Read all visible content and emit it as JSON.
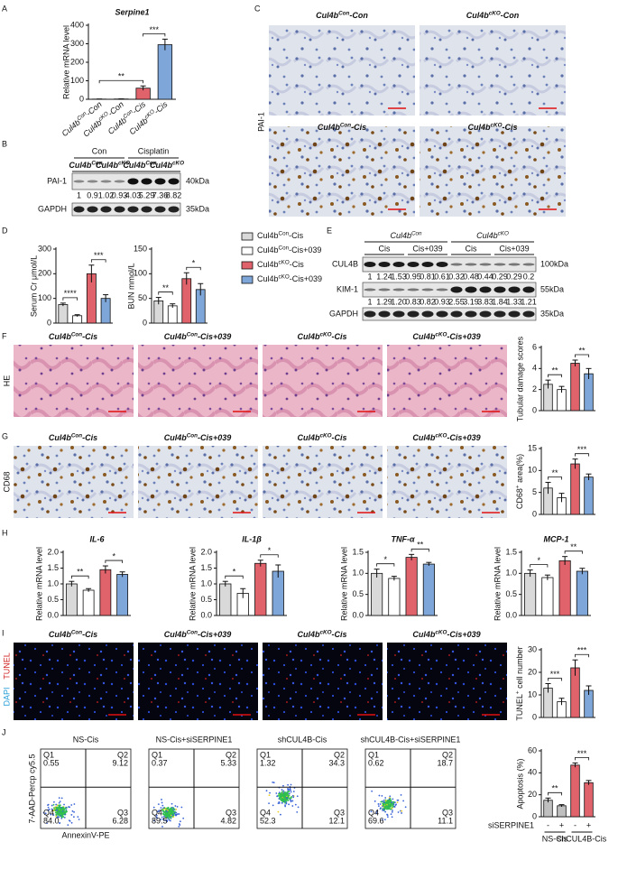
{
  "panel_letters": [
    "A",
    "B",
    "C",
    "D",
    "E",
    "F",
    "G",
    "H",
    "I",
    "J"
  ],
  "chart_data": [
    {
      "type": "bar",
      "title": "Serpine1",
      "ylabel": "Relative mRNA level",
      "categories": [
        [
          "Cul4b",
          "Con",
          "-Con"
        ],
        [
          "Cul4b",
          "cKO",
          "-Con"
        ],
        [
          "Cul4b",
          "Con",
          "-Cis"
        ],
        [
          "Cul4b",
          "cKO",
          "-Cis"
        ]
      ],
      "values": [
        1,
        1.5,
        60,
        295
      ],
      "errors": [
        0.5,
        0.8,
        12,
        30
      ],
      "colors": [
        "#d9d9d9",
        "#ffffff",
        "#e0626b",
        "#7ea6d8"
      ],
      "ylim": [
        0,
        400
      ],
      "yticks": [
        0,
        100,
        200,
        300,
        400
      ],
      "significance": [
        {
          "label": "**",
          "between": [
            0,
            2
          ]
        },
        {
          "label": "***",
          "between": [
            2,
            3
          ]
        }
      ]
    },
    {
      "type": "bar",
      "ylabel": "Serum Cr μmol/L",
      "values": [
        75,
        30,
        200,
        100
      ],
      "errors": [
        6,
        4,
        35,
        15
      ],
      "colors": [
        "#d9d9d9",
        "#ffffff",
        "#e0626b",
        "#7ea6d8"
      ],
      "ylim": [
        0,
        300
      ],
      "yticks": [
        0,
        100,
        200,
        300
      ],
      "significance": [
        {
          "label": "****",
          "between": [
            0,
            1
          ]
        },
        {
          "label": "***",
          "between": [
            2,
            3
          ]
        }
      ]
    },
    {
      "type": "bar",
      "ylabel": "BUN mmol/L",
      "values": [
        45,
        35,
        90,
        68
      ],
      "errors": [
        7,
        4,
        12,
        12
      ],
      "colors": [
        "#d9d9d9",
        "#ffffff",
        "#e0626b",
        "#7ea6d8"
      ],
      "ylim": [
        0,
        150
      ],
      "yticks": [
        0,
        50,
        100,
        150
      ],
      "significance": [
        {
          "label": "**",
          "between": [
            0,
            1
          ]
        },
        {
          "label": "*",
          "between": [
            2,
            3
          ]
        }
      ]
    },
    {
      "type": "bar",
      "ylabel": "Tubular damage scores",
      "values": [
        2.5,
        2.0,
        4.5,
        3.5
      ],
      "errors": [
        0.4,
        0.3,
        0.3,
        0.5
      ],
      "colors": [
        "#d9d9d9",
        "#ffffff",
        "#e0626b",
        "#7ea6d8"
      ],
      "ylim": [
        0,
        6
      ],
      "yticks": [
        0,
        2,
        4,
        6
      ],
      "significance": [
        {
          "label": "**",
          "between": [
            0,
            1
          ]
        },
        {
          "label": "**",
          "between": [
            2,
            3
          ]
        }
      ]
    },
    {
      "type": "bar",
      "ylabel": [
        "CD68",
        "+",
        " area(%)"
      ],
      "values": [
        6,
        3.8,
        11.5,
        8.5
      ],
      "errors": [
        1.3,
        1,
        1.1,
        0.7
      ],
      "colors": [
        "#d9d9d9",
        "#ffffff",
        "#e0626b",
        "#7ea6d8"
      ],
      "ylim": [
        0,
        15
      ],
      "yticks": [
        0,
        5,
        10,
        15
      ],
      "significance": [
        {
          "label": "**",
          "between": [
            0,
            1
          ]
        },
        {
          "label": "***",
          "between": [
            2,
            3
          ]
        }
      ]
    },
    {
      "type": "bar",
      "title": "IL-6",
      "ylabel": "Relative mRNA level",
      "values": [
        1.0,
        0.8,
        1.45,
        1.3
      ],
      "errors": [
        0.08,
        0.05,
        0.12,
        0.08
      ],
      "colors": [
        "#d9d9d9",
        "#ffffff",
        "#e0626b",
        "#7ea6d8"
      ],
      "ylim": [
        0,
        2
      ],
      "yticks": [
        {
          "value": 0,
          "label": "0.0"
        },
        {
          "value": 0.5,
          "label": "0.5"
        },
        {
          "value": 1,
          "label": "1.0"
        },
        {
          "value": 1.5,
          "label": "1.5"
        },
        {
          "value": 2,
          "label": "2.0"
        }
      ],
      "significance": [
        {
          "label": "**",
          "between": [
            0,
            1
          ]
        },
        {
          "label": "*",
          "between": [
            2,
            3
          ]
        }
      ]
    },
    {
      "type": "bar",
      "title": "IL-1β",
      "ylabel": "Relative mRNA level",
      "values": [
        1.0,
        0.7,
        1.65,
        1.4
      ],
      "errors": [
        0.08,
        0.15,
        0.1,
        0.2
      ],
      "colors": [
        "#d9d9d9",
        "#ffffff",
        "#e0626b",
        "#7ea6d8"
      ],
      "ylim": [
        0,
        2
      ],
      "yticks": [
        {
          "value": 0,
          "label": "0.0"
        },
        {
          "value": 0.5,
          "label": "0.5"
        },
        {
          "value": 1,
          "label": "1.0"
        },
        {
          "value": 1.5,
          "label": "1.5"
        },
        {
          "value": 2,
          "label": "2.0"
        }
      ],
      "significance": [
        {
          "label": "*",
          "between": [
            0,
            1
          ]
        },
        {
          "label": "*",
          "between": [
            2,
            3
          ]
        }
      ]
    },
    {
      "type": "bar",
      "title": "TNF-α",
      "ylabel": "Relative mRNA level",
      "values": [
        1.0,
        0.88,
        1.38,
        1.22
      ],
      "errors": [
        0.1,
        0.05,
        0.07,
        0.04
      ],
      "colors": [
        "#d9d9d9",
        "#ffffff",
        "#e0626b",
        "#7ea6d8"
      ],
      "ylim": [
        0,
        1.5
      ],
      "yticks": [
        {
          "value": 0,
          "label": "0.0"
        },
        {
          "value": 0.5,
          "label": "0.5"
        },
        {
          "value": 1,
          "label": "1.0"
        },
        {
          "value": 1.5,
          "label": "1.5"
        }
      ],
      "significance": [
        {
          "label": "*",
          "between": [
            0,
            1
          ]
        },
        {
          "label": "**",
          "between": [
            2,
            3
          ]
        }
      ]
    },
    {
      "type": "bar",
      "title": "MCP-1",
      "ylabel": "Relative mRNA level",
      "values": [
        1.0,
        0.9,
        1.3,
        1.05
      ],
      "errors": [
        0.08,
        0.06,
        0.1,
        0.07
      ],
      "colors": [
        "#d9d9d9",
        "#ffffff",
        "#e0626b",
        "#7ea6d8"
      ],
      "ylim": [
        0,
        1.5
      ],
      "yticks": [
        {
          "value": 0,
          "label": "0.0"
        },
        {
          "value": 0.5,
          "label": "0.5"
        },
        {
          "value": 1,
          "label": "1.0"
        },
        {
          "value": 1.5,
          "label": "1.5"
        }
      ],
      "significance": [
        {
          "label": "*",
          "between": [
            0,
            1
          ]
        },
        {
          "label": "**",
          "between": [
            2,
            3
          ]
        }
      ]
    },
    {
      "type": "bar",
      "ylabel": [
        "TUNEL",
        "+",
        " cell number"
      ],
      "values": [
        13,
        7,
        22,
        12
      ],
      "errors": [
        2,
        1.5,
        3.5,
        2
      ],
      "colors": [
        "#d9d9d9",
        "#ffffff",
        "#e0626b",
        "#7ea6d8"
      ],
      "ylim": [
        0,
        30
      ],
      "yticks": [
        0,
        10,
        20,
        30
      ],
      "significance": [
        {
          "label": "***",
          "between": [
            0,
            1
          ]
        },
        {
          "label": "***",
          "between": [
            2,
            3
          ]
        }
      ]
    },
    {
      "type": "bar",
      "ylabel": "Apoptosis (%)",
      "values": [
        15,
        10,
        47,
        31
      ],
      "errors": [
        2,
        1,
        2,
        2
      ],
      "colors": [
        "#bfbfbf",
        "#bfbfbf",
        "#e0626b",
        "#e0626b"
      ],
      "ylim": [
        0,
        60
      ],
      "yticks": [
        0,
        20,
        40,
        60
      ],
      "significance": [
        {
          "label": "**",
          "between": [
            0,
            1
          ]
        },
        {
          "label": "***",
          "between": [
            2,
            3
          ]
        }
      ],
      "x_factor": "siSERPINE1",
      "x_levels": [
        "-",
        "+",
        "-",
        "+"
      ],
      "groups": [
        "NS-Cis",
        "shCUL4B-Cis"
      ]
    }
  ],
  "legend_d": [
    {
      "name": [
        "Cul4b",
        "Con",
        "-Cis"
      ],
      "color": "#d9d9d9"
    },
    {
      "name": [
        "Cul4b",
        "Con",
        "-Cis+039"
      ],
      "color": "#ffffff"
    },
    {
      "name": [
        "Cul4b",
        "cKO",
        "-Cis"
      ],
      "color": "#e0626b"
    },
    {
      "name": [
        "Cul4b",
        "cKO",
        "-Cis+039"
      ],
      "color": "#7ea6d8"
    }
  ],
  "blot_b": {
    "groups": [
      "Con",
      "Cisplatin"
    ],
    "lanes": [
      [
        "Cul4b",
        "Con"
      ],
      [
        "Cul4b",
        "cKO"
      ],
      [
        "Cul4b",
        "Con"
      ],
      [
        "Cul4b",
        "cKO"
      ]
    ],
    "rows": [
      "PAI-1",
      "GAPDH"
    ],
    "quant": [
      "1",
      "0.9",
      "1.02",
      "0.93",
      "4.03",
      "5.29",
      "7.36",
      "8.82"
    ],
    "markers": [
      "40kDa",
      "35kDa"
    ]
  },
  "blot_e": {
    "groups": [
      [
        "Cul4b",
        "Con"
      ],
      [
        "Cul4b",
        "cKO"
      ]
    ],
    "treatments": [
      "Cis",
      "Cis+039",
      "Cis",
      "Cis+039"
    ],
    "rows": [
      "CUL4B",
      "KIM-1",
      "GAPDH"
    ],
    "quant": [
      [
        "1",
        "1.24",
        "1.53",
        "0.95",
        "0.81",
        "0.61",
        "0.32",
        "0.48",
        "0.44",
        "0.29",
        "0.29",
        "0.2"
      ],
      [
        "1",
        "1.29",
        "1.20",
        "0.83",
        "0.82",
        "0.93",
        "2.55",
        "3.19",
        "3.83",
        "1.84",
        "1.33",
        "1.21"
      ]
    ],
    "markers": [
      "100kDa",
      "55kDa",
      "35kDa"
    ]
  },
  "panel_c": {
    "stain": "PAI-1",
    "labels": [
      [
        "Cul4b",
        "Con",
        "-Con"
      ],
      [
        "Cul4b",
        "cKO",
        "-Con"
      ],
      [
        "Cul4b",
        "Con",
        "-Cis"
      ],
      [
        "Cul4b",
        "cKO",
        "-Cis"
      ]
    ]
  },
  "panel_f": {
    "stain": "HE",
    "labels": [
      [
        "Cul4b",
        "Con",
        "-Cis"
      ],
      [
        "Cul4b",
        "Con",
        "-Cis+039"
      ],
      [
        "Cul4b",
        "cKO",
        "-Cis"
      ],
      [
        "Cul4b",
        "cKO",
        "-Cis+039"
      ]
    ]
  },
  "panel_g": {
    "stain": "CD68",
    "labels": [
      [
        "Cul4b",
        "Con",
        "-Cis"
      ],
      [
        "Cul4b",
        "Con",
        "-Cis+039"
      ],
      [
        "Cul4b",
        "cKO",
        "-Cis"
      ],
      [
        "Cul4b",
        "cKO",
        "-Cis+039"
      ]
    ]
  },
  "panel_i": {
    "stains": [
      "DAPI",
      "TUNEL"
    ],
    "labels": [
      [
        "Cul4b",
        "Con",
        "-Cis"
      ],
      [
        "Cul4b",
        "Con",
        "-Cis+039"
      ],
      [
        "Cul4b",
        "cKO",
        "-Cis"
      ],
      [
        "Cul4b",
        "cKO",
        "-Cis+039"
      ]
    ]
  },
  "panel_j": {
    "labels": [
      "NS-Cis",
      "NS-Cis+siSERPINE1",
      "shCUL4B-Cis",
      "shCUL4B-Cis+siSERPINE1"
    ],
    "quadrants": [
      "Q1",
      "Q2",
      "Q3",
      "Q4"
    ],
    "plots": [
      [
        "0.55",
        "9.12",
        "6.28",
        "84.0"
      ],
      [
        "0.37",
        "5.33",
        "4.82",
        "89.5"
      ],
      [
        "1.32",
        "34.3",
        "12.1",
        "52.3"
      ],
      [
        "0.62",
        "18.7",
        "11.1",
        "69.6"
      ]
    ],
    "xlabel": "AnnexinV-PE",
    "ylabel": "7-AAD-Percp cy5.5"
  }
}
